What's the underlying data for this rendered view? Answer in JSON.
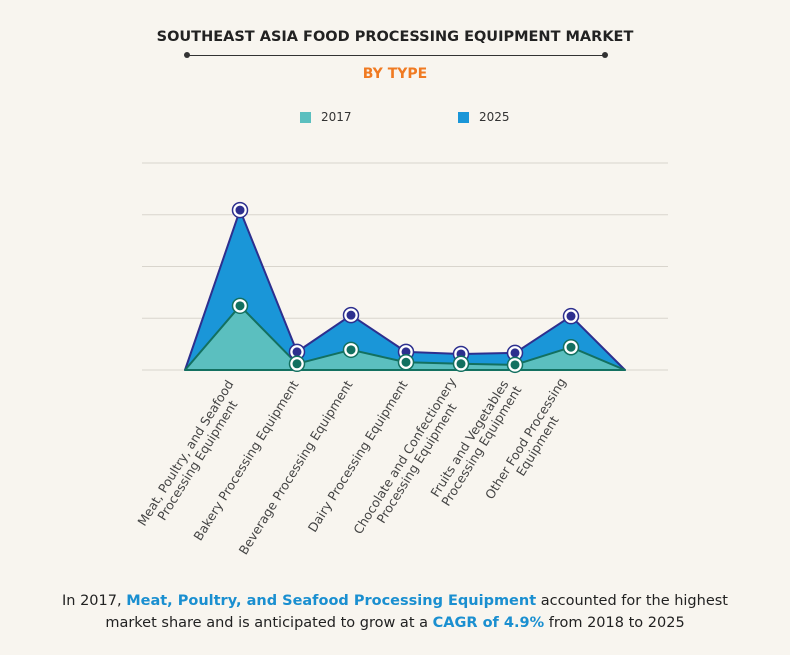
{
  "title": "SOUTHEAST ASIA FOOD PROCESSING EQUIPMENT MARKET",
  "subtitle": "BY TYPE",
  "colors": {
    "s2017": "#5bbfbf",
    "s2025": "#1a96d8",
    "line2017": "#137060",
    "line2025": "#2d2f8e",
    "accent": "#f07a22"
  },
  "chart_data": {
    "type": "area",
    "title": "SOUTHEAST ASIA FOOD PROCESSING EQUIPMENT MARKET",
    "subtitle": "BY TYPE",
    "categories": [
      "Meat, Poultry, and Seafood Processing Equipment",
      "Bakery Processing Equipment",
      "Beverage Processing Equipment",
      "Dairy Processing Equipment",
      "Chocolate and Confectionery Processing Equipment",
      "Fruits and Vegetables Processing Equipment",
      "Other Food Processing Equipment"
    ],
    "label_lines": [
      [
        "Meat, Poultry, and Seafood",
        "Processing Equipment"
      ],
      [
        "Bakery Processing Equipment"
      ],
      [
        "Beverage Processing Equipment"
      ],
      [
        "Dairy Processing Equipment"
      ],
      [
        "Chocolate and Confectionery",
        "Processing Equipment"
      ],
      [
        "Fruits and Vegetables",
        "Processing Equipment"
      ],
      [
        "Other Food Processing",
        "Equipment"
      ]
    ],
    "series": [
      {
        "name": "2017",
        "values": [
          1.24,
          0.12,
          0.39,
          0.15,
          0.12,
          0.1,
          0.44
        ]
      },
      {
        "name": "2025",
        "values": [
          3.09,
          0.35,
          1.06,
          0.35,
          0.31,
          0.33,
          1.04
        ]
      }
    ],
    "ylim": [
      0,
      4
    ],
    "grid": true,
    "legend": "top",
    "xlabel": "",
    "ylabel": ""
  },
  "footer": {
    "p1": "In 2017, ",
    "h1": "Meat, Poultry, and Seafood Processing Equipment",
    "p2": " accounted for the highest",
    "p3": "market share and is anticipated to grow at a ",
    "h2": "CAGR of 4.9%",
    "p4": " from 2018 to 2025"
  }
}
